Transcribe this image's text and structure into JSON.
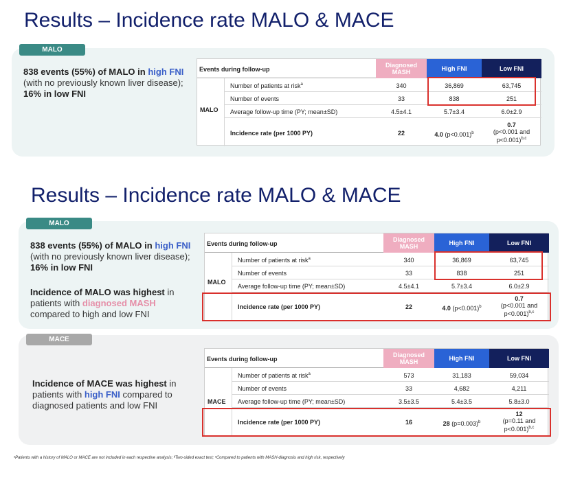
{
  "title": "Results – Incidence rate MALO & MACE",
  "panels": {
    "malo_label": "MALO",
    "mace_label": "MACE"
  },
  "texts": {
    "malo_events_a": "838 events (55%) of MALO in ",
    "malo_events_b": "high FNI",
    "malo_events_c": " (with no previously known liver disease); ",
    "malo_events_d": "16% in low FNI",
    "malo_highest_a": "Incidence of MALO was highest",
    "malo_highest_b": " in patients with ",
    "malo_highest_c": "diagnosed MASH",
    "malo_highest_d": " compared to high and low FNI",
    "mace_highest_a": "Incidence of MACE was highest",
    "mace_highest_b": " in patients with ",
    "mace_highest_c": "high FNI",
    "mace_highest_d": " compared to diagnosed patients and low FNI"
  },
  "table_header": {
    "events": "Events during follow-up",
    "diag": "Diagnosed MASH",
    "high": "High FNI",
    "low": "Low FNI"
  },
  "rows": {
    "at_risk": "Number of patients at risk",
    "at_risk_sup": "a",
    "events": "Number of events",
    "followup": "Average follow-up time (PY; mean±SD)",
    "incidence": "Incidence rate (per 1000 PY)"
  },
  "malo": {
    "group": "MALO",
    "at_risk": [
      "340",
      "36,869",
      "63,745"
    ],
    "events": [
      "33",
      "838",
      "251"
    ],
    "followup": [
      "4.5±4.1",
      "5.7±3.4",
      "6.0±2.9"
    ],
    "incidence_diag": "22",
    "incidence_high_val": "4.0",
    "incidence_high_p": " (p<0.001)",
    "incidence_high_sup": "b",
    "incidence_low_val": "0.7",
    "incidence_low_p1": "(p<0.001 and",
    "incidence_low_p2": "p<0.001)",
    "incidence_low_sup": "b,c"
  },
  "mace": {
    "group": "MACE",
    "at_risk": [
      "573",
      "31,183",
      "59,034"
    ],
    "events": [
      "33",
      "4,682",
      "4,211"
    ],
    "followup": [
      "3.5±3.5",
      "5.4±3.5",
      "5.8±3.0"
    ],
    "incidence_diag": "16",
    "incidence_high_val": "28",
    "incidence_high_p": " (p=0.003)",
    "incidence_high_sup": "b",
    "incidence_low_val": "12",
    "incidence_low_p1": "(p=0.11 and",
    "incidence_low_p2": "p<0.001)",
    "incidence_low_sup": "b,c"
  },
  "footnote": "ᵃPatients with a history of MALO or MACE are not included in each respective analysis; ᵇTwo-sided exact test; ᶜCompared to patients with MASH-diagnosis and high risk, respectively"
}
